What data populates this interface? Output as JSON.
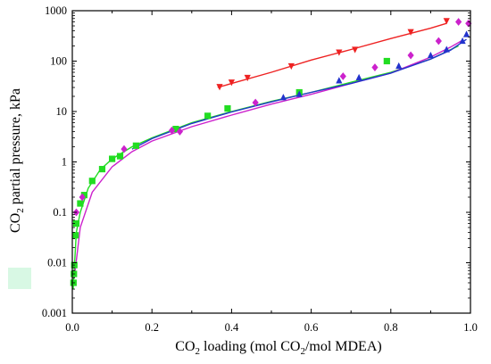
{
  "chart_data": {
    "type": "scatter",
    "xlabel": {
      "pre": "CO",
      "sub1": "2",
      "mid": " loading (mol CO",
      "sub2": "2",
      "post": "/mol MDEA)"
    },
    "ylabel": {
      "pre": "CO",
      "sub": "2",
      "post": " partial pressure, kPa"
    },
    "x_scale": "linear",
    "y_scale": "log",
    "xlim": [
      0.0,
      1.0
    ],
    "ylim": [
      0.001,
      1000
    ],
    "x_ticks": [
      0.0,
      0.2,
      0.4,
      0.6,
      0.8,
      1.0
    ],
    "x_tick_labels": [
      "0.0",
      "0.2",
      "0.4",
      "0.6",
      "0.8",
      "1.0"
    ],
    "y_ticks": [
      0.001,
      0.01,
      0.1,
      1,
      10,
      100,
      1000
    ],
    "y_tick_labels": [
      "0.001",
      "0.01",
      "0.1",
      "1",
      "10",
      "100",
      "1000"
    ],
    "grid": false,
    "legend": "none",
    "series": [
      {
        "color": "#22dd22",
        "marker": "square",
        "points": [
          [
            0.003,
            0.004
          ],
          [
            0.004,
            0.006
          ],
          [
            0.005,
            0.009
          ],
          [
            0.008,
            0.035
          ],
          [
            0.01,
            0.06
          ],
          [
            0.02,
            0.15
          ],
          [
            0.03,
            0.22
          ],
          [
            0.05,
            0.42
          ],
          [
            0.075,
            0.72
          ],
          [
            0.1,
            1.15
          ],
          [
            0.12,
            1.3
          ],
          [
            0.16,
            2.1
          ],
          [
            0.26,
            4.5
          ],
          [
            0.34,
            8.2
          ],
          [
            0.39,
            11.5
          ],
          [
            0.57,
            24
          ],
          [
            0.79,
            100
          ]
        ],
        "fit": [
          [
            0.002,
            0.003
          ],
          [
            0.01,
            0.04
          ],
          [
            0.02,
            0.1
          ],
          [
            0.04,
            0.3
          ],
          [
            0.07,
            0.7
          ],
          [
            0.1,
            1.15
          ],
          [
            0.15,
            2.0
          ],
          [
            0.2,
            3.0
          ],
          [
            0.3,
            6.0
          ],
          [
            0.4,
            10
          ],
          [
            0.5,
            16
          ],
          [
            0.6,
            24
          ],
          [
            0.7,
            38
          ],
          [
            0.8,
            60
          ],
          [
            0.9,
            110
          ],
          [
            0.97,
            200
          ]
        ]
      },
      {
        "color": "#cc22cc",
        "marker": "diamond",
        "points": [
          [
            0.01,
            0.1
          ],
          [
            0.025,
            0.2
          ],
          [
            0.13,
            1.8
          ],
          [
            0.25,
            4.2
          ],
          [
            0.27,
            4.0
          ],
          [
            0.46,
            15
          ],
          [
            0.68,
            50
          ],
          [
            0.76,
            75
          ],
          [
            0.85,
            130
          ],
          [
            0.92,
            250
          ],
          [
            0.97,
            600
          ],
          [
            0.995,
            560
          ]
        ],
        "fit": [
          [
            0.005,
            0.005
          ],
          [
            0.02,
            0.05
          ],
          [
            0.05,
            0.25
          ],
          [
            0.1,
            0.8
          ],
          [
            0.15,
            1.6
          ],
          [
            0.2,
            2.6
          ],
          [
            0.3,
            5.0
          ],
          [
            0.4,
            8.5
          ],
          [
            0.5,
            14
          ],
          [
            0.6,
            22
          ],
          [
            0.7,
            36
          ],
          [
            0.8,
            58
          ],
          [
            0.9,
            120
          ],
          [
            0.95,
            190
          ],
          [
            0.98,
            260
          ]
        ]
      },
      {
        "color": "#2233cc",
        "marker": "triangle-up",
        "points": [
          [
            0.53,
            19
          ],
          [
            0.57,
            22
          ],
          [
            0.67,
            41
          ],
          [
            0.72,
            47
          ],
          [
            0.82,
            80
          ],
          [
            0.9,
            130
          ],
          [
            0.94,
            170
          ],
          [
            0.98,
            250
          ],
          [
            0.99,
            340
          ]
        ],
        "fit": [
          [
            0.15,
            1.8
          ],
          [
            0.2,
            2.9
          ],
          [
            0.3,
            5.8
          ],
          [
            0.4,
            9.8
          ],
          [
            0.5,
            15.5
          ],
          [
            0.6,
            24
          ],
          [
            0.7,
            36
          ],
          [
            0.8,
            58
          ],
          [
            0.9,
            110
          ],
          [
            0.95,
            165
          ],
          [
            0.99,
            270
          ]
        ]
      },
      {
        "color": "#ee2222",
        "marker": "triangle-down",
        "points": [
          [
            0.37,
            31
          ],
          [
            0.4,
            38
          ],
          [
            0.44,
            47
          ],
          [
            0.55,
            80
          ],
          [
            0.67,
            150
          ],
          [
            0.71,
            170
          ],
          [
            0.85,
            380
          ],
          [
            0.94,
            630
          ]
        ],
        "fit": [
          [
            0.365,
            30
          ],
          [
            0.4,
            36
          ],
          [
            0.5,
            60
          ],
          [
            0.6,
            105
          ],
          [
            0.7,
            170
          ],
          [
            0.8,
            280
          ],
          [
            0.9,
            450
          ],
          [
            0.94,
            560
          ]
        ]
      }
    ]
  }
}
